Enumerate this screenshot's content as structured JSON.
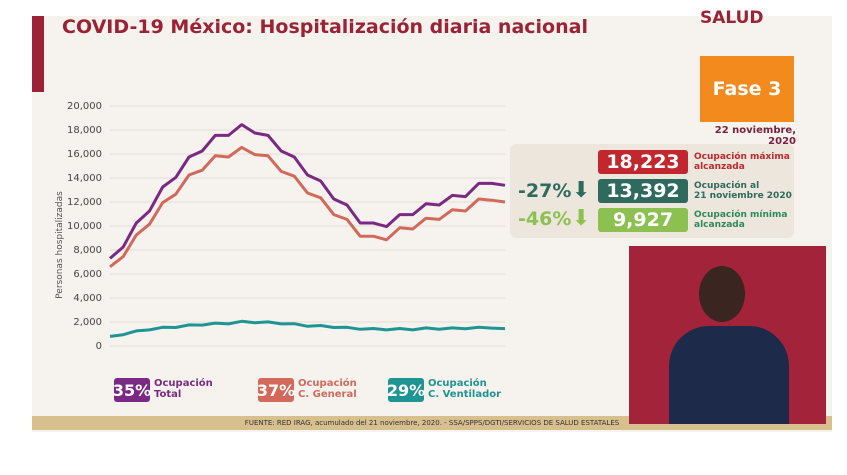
{
  "title": "COVID-19 México: Hospitalización diaria nacional",
  "logo": "SALUD",
  "fase": "Fase 3",
  "fecha": "22 noviembre, 2020",
  "stats": {
    "max": {
      "value": "18,223",
      "label1": "Ocupación máxima",
      "label2": "alcanzada",
      "color": "#c1272d"
    },
    "current": {
      "pct": "-27%",
      "value": "13,392",
      "label1": "Ocupación al",
      "label2": "21 noviembre 2020",
      "color": "#2e6b5e"
    },
    "min": {
      "pct": "-46%",
      "value": "9,927",
      "label1": "Ocupación mínima",
      "label2": "alcanzada",
      "color": "#8cc152"
    }
  },
  "legend": [
    {
      "pct": "35%",
      "l1": "Ocupación",
      "l2": "Total",
      "color": "#7b2a83"
    },
    {
      "pct": "37%",
      "l1": "Ocupación",
      "l2": "C. General",
      "color": "#d3695a"
    },
    {
      "pct": "29%",
      "l1": "Ocupación",
      "l2": "C. Ventilador",
      "color": "#1e9593"
    }
  ],
  "footer": "FUENTE: RED IRAG, acumulado del 21 noviembre, 2020. -  SSA/SPPS/DGTI/SERVICIOS DE SALUD ESTATALES",
  "chart_data": {
    "type": "line",
    "ylabel": "Personas hospitalizadas",
    "ylim": [
      0,
      20000
    ],
    "yticks": [
      "0",
      "2,000",
      "4,000",
      "6,000",
      "8,000",
      "10,000",
      "12,000",
      "14,000",
      "16,000",
      "18,000",
      "20,000"
    ],
    "grid": true,
    "series": [
      {
        "color": "#7b2a83",
        "values": [
          7300,
          8500,
          10000,
          11500,
          13000,
          14300,
          15500,
          16500,
          17300,
          17800,
          18200,
          18000,
          17300,
          16500,
          15500,
          14500,
          13500,
          12500,
          11500,
          10500,
          10000,
          10200,
          10700,
          11200,
          11600,
          12000,
          12300,
          12700,
          13300,
          13800,
          13392
        ]
      },
      {
        "color": "#d3695a",
        "values": [
          6600,
          7700,
          9000,
          10400,
          11700,
          12900,
          14000,
          14900,
          15600,
          16000,
          16300,
          16200,
          15600,
          14800,
          13900,
          13000,
          12100,
          11200,
          10300,
          9400,
          8900,
          9100,
          9600,
          10000,
          10400,
          10800,
          11100,
          11500,
          12000,
          12400,
          12000
        ]
      },
      {
        "color": "#1e9593",
        "values": [
          800,
          1000,
          1200,
          1400,
          1500,
          1600,
          1700,
          1800,
          1850,
          1900,
          2000,
          2000,
          1950,
          1900,
          1800,
          1700,
          1650,
          1600,
          1500,
          1450,
          1400,
          1400,
          1400,
          1400,
          1450,
          1450,
          1450,
          1500,
          1500,
          1550,
          1450
        ]
      }
    ]
  }
}
